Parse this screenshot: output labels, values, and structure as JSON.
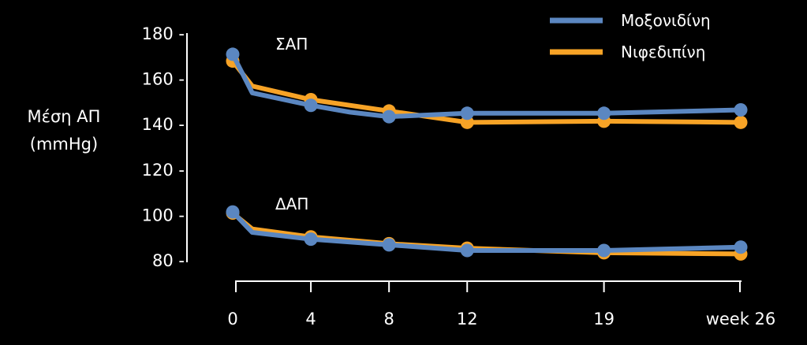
{
  "chart_data": {
    "type": "line",
    "ylabel": [
      "Μέση ΑΠ",
      "(mmHg)"
    ],
    "xlabel": "",
    "x": [
      0,
      1,
      4,
      6,
      8,
      12,
      19,
      26
    ],
    "xticks": [
      0,
      4,
      8,
      12,
      19,
      26
    ],
    "xtick_labels": [
      "0",
      "4",
      "8",
      "12",
      "19",
      "week 26"
    ],
    "ylim": [
      80,
      180
    ],
    "yticks": [
      80,
      100,
      120,
      140,
      160,
      180
    ],
    "ytick_labels": [
      "80 -",
      "100 -",
      "120 -",
      "140 -",
      "160 -",
      "180 -"
    ],
    "legend_position": "top-right",
    "groups": [
      {
        "label": "ΣΑΠ",
        "anchor_x": 6,
        "anchor_y": 173
      },
      {
        "label": "ΔΑΠ",
        "anchor_x": 6,
        "anchor_y": 105
      }
    ],
    "series": [
      {
        "name": "Νιφεδιπίνη",
        "color": "#F7A326",
        "group": "ΣΑΠ",
        "x": [
          0,
          1,
          4,
          8,
          12,
          19,
          26
        ],
        "y": [
          168,
          157,
          151,
          146,
          141,
          141.5,
          141
        ],
        "markers_at": [
          0,
          4,
          8,
          12,
          19,
          26
        ]
      },
      {
        "name": "Μοξονιδίνη",
        "color": "#5B87C1",
        "group": "ΣΑΠ",
        "x": [
          0,
          1,
          4,
          6,
          8,
          12,
          19,
          26
        ],
        "y": [
          171,
          154,
          148.5,
          145.5,
          143.5,
          145,
          145,
          146.5
        ],
        "markers_at": [
          0,
          4,
          8,
          12,
          19,
          26
        ]
      },
      {
        "name": "Νιφεδιπίνη",
        "color": "#F7A326",
        "group": "ΔΑΠ",
        "x": [
          0,
          1,
          4,
          8,
          12,
          19,
          26
        ],
        "y": [
          101,
          94,
          90.5,
          87.5,
          85.5,
          83.5,
          83
        ],
        "markers_at": [
          0,
          4,
          8,
          12,
          19,
          26
        ]
      },
      {
        "name": "Μοξονιδίνη",
        "color": "#5B87C1",
        "group": "ΔΑΠ",
        "x": [
          0,
          1,
          4,
          8,
          12,
          19,
          26
        ],
        "y": [
          101.5,
          92.5,
          89.5,
          87,
          84.5,
          84.5,
          86
        ],
        "markers_at": [
          0,
          4,
          8,
          12,
          19,
          26
        ]
      }
    ],
    "legend": [
      {
        "name": "Μοξονιδίνη",
        "color": "#5B87C1"
      },
      {
        "name": "Νιφεδιπίνη",
        "color": "#F7A326"
      }
    ]
  }
}
